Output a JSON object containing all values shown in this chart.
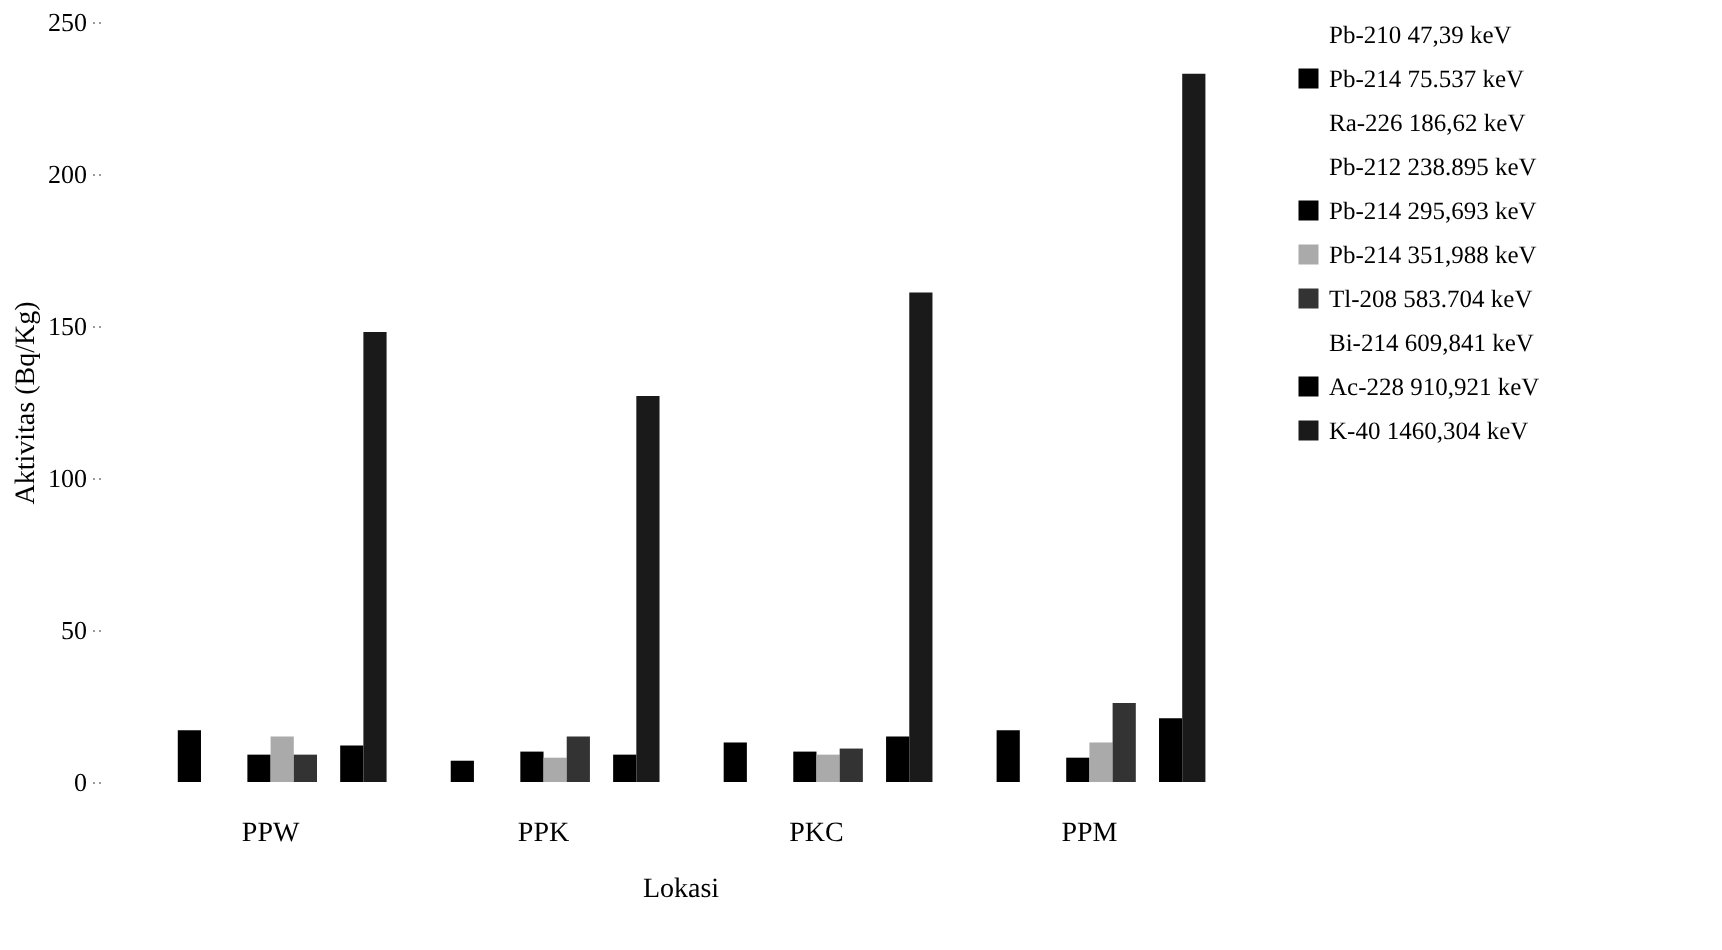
{
  "chart_data": {
    "type": "bar",
    "xlabel": "Lokasi",
    "ylabel": "Aktivitas (Bq/Kg)",
    "categories": [
      "PPW",
      "PPK",
      "PKC",
      "PPM"
    ],
    "series": [
      {
        "name": "Pb-210 47,39 keV",
        "values": [
          null,
          null,
          null,
          null
        ]
      },
      {
        "name": "Pb-214 75.537 keV",
        "color": "#000000",
        "values": [
          17,
          7,
          13,
          17
        ]
      },
      {
        "name": "Ra-226 186,62 keV",
        "values": [
          null,
          null,
          null,
          null
        ]
      },
      {
        "name": "Pb-212 238.895 keV",
        "values": [
          null,
          null,
          null,
          null
        ]
      },
      {
        "name": "Pb-214 295,693 keV",
        "color": "#000000",
        "values": [
          9,
          10,
          10,
          8
        ]
      },
      {
        "name": "Pb-214 351,988 keV",
        "color": "#aaaaaa",
        "values": [
          15,
          8,
          9,
          13
        ]
      },
      {
        "name": "Tl-208 583.704 keV",
        "color": "#333333",
        "values": [
          9,
          15,
          11,
          26
        ]
      },
      {
        "name": "Bi-214 609,841 keV",
        "values": [
          null,
          null,
          null,
          null
        ]
      },
      {
        "name": "Ac-228 910,921 keV",
        "color": "#000000",
        "values": [
          12,
          9,
          15,
          21
        ]
      },
      {
        "name": "K-40 1460,304 keV",
        "color": "#1a1a1a",
        "values": [
          148,
          127,
          161,
          233
        ]
      }
    ],
    "ylim": [
      0,
      250
    ],
    "yticks": [
      0,
      50,
      100,
      150,
      200,
      250
    ],
    "grid": false,
    "legend": "right"
  }
}
